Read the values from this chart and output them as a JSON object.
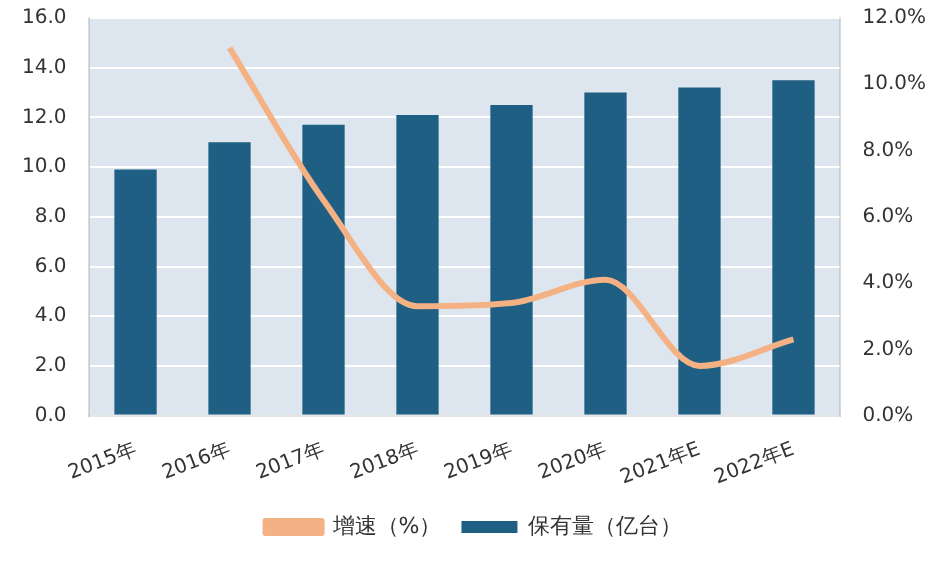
{
  "chart_data": {
    "type": "bar",
    "categories": [
      "2015年",
      "2016年",
      "2017年",
      "2018年",
      "2019年",
      "2020年",
      "2021年E",
      "2022年E"
    ],
    "series": [
      {
        "name": "保有量（亿台）",
        "color": "#1f5f84",
        "values": [
          9.9,
          11.0,
          11.7,
          12.1,
          12.5,
          13.0,
          13.2,
          13.5
        ]
      },
      {
        "name": "增速（%）",
        "type": "line",
        "axis": "y2",
        "color": "#f4b183",
        "values": [
          null,
          11.1,
          6.5,
          3.3,
          3.4,
          4.1,
          1.5,
          2.3
        ]
      }
    ],
    "ylim": [
      0,
      16
    ],
    "yticks": [
      {
        "value": 0,
        "label": "0.0"
      },
      {
        "value": 2,
        "label": "2.0"
      },
      {
        "value": 4,
        "label": "4.0"
      },
      {
        "value": 6,
        "label": "6.0"
      },
      {
        "value": 8,
        "label": "8.0"
      },
      {
        "value": 10,
        "label": "10.0"
      },
      {
        "value": 12,
        "label": "12.0"
      },
      {
        "value": 14,
        "label": "14.0"
      },
      {
        "value": 16,
        "label": "16.0"
      }
    ],
    "y2lim": [
      0,
      12
    ],
    "y2ticks": [
      {
        "value": 0,
        "label": "0.0%"
      },
      {
        "value": 2,
        "label": "2.0%"
      },
      {
        "value": 4,
        "label": "4.0%"
      },
      {
        "value": 6,
        "label": "6.0%"
      },
      {
        "value": 8,
        "label": "8.0%"
      },
      {
        "value": 10,
        "label": "10.0%"
      },
      {
        "value": 12,
        "label": "12.0%"
      }
    ],
    "grid": "y",
    "legend": "bottom",
    "marker": "none"
  }
}
